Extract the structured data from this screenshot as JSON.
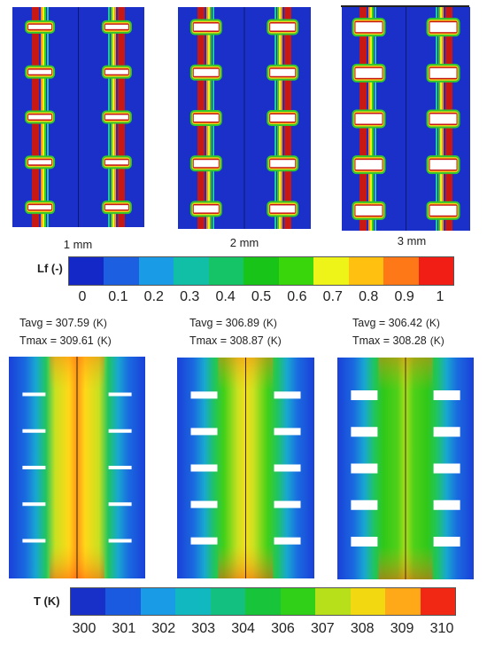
{
  "lf_panels": [
    {
      "label": "1 mm",
      "fin": "1mm"
    },
    {
      "label": "2 mm",
      "fin": "2mm"
    },
    {
      "label": "3 mm",
      "fin": "3mm"
    }
  ],
  "lf_colorbar": {
    "title": "Lf (-)",
    "ticks": [
      "0",
      "0.1",
      "0.2",
      "0.3",
      "0.4",
      "0.5",
      "0.6",
      "0.7",
      "0.8",
      "0.9",
      "1"
    ],
    "colors": [
      "#1428c8",
      "#1c5fe0",
      "#1a9be6",
      "#10bfa6",
      "#14c466",
      "#18c418",
      "#3ad60c",
      "#eef418",
      "#ffc010",
      "#ff7818",
      "#f01e14"
    ]
  },
  "stats": [
    {
      "tavg_label": "Tavg =",
      "tavg": "307.59",
      "tmax_label": "Tmax =",
      "tmax": "309.61",
      "unit": "(K)"
    },
    {
      "tavg_label": "Tavg =",
      "tavg": "306.89",
      "tmax_label": "Tmax =",
      "tmax": "308.87",
      "unit": "(K)"
    },
    {
      "tavg_label": "Tavg =",
      "tavg": "306.42",
      "tmax_label": "Tmax =",
      "tmax": "308.28",
      "unit": "(K)"
    }
  ],
  "t_colorbar": {
    "title": "T (K)",
    "ticks": [
      "300",
      "301",
      "302",
      "303",
      "304",
      "306",
      "307",
      "308",
      "309",
      "310"
    ],
    "colors": [
      "#1830c8",
      "#1a5ae0",
      "#1a9be6",
      "#12b8c0",
      "#14c080",
      "#18c43a",
      "#30d018",
      "#b8e01a",
      "#f2d810",
      "#ffa818",
      "#f02814"
    ]
  }
}
